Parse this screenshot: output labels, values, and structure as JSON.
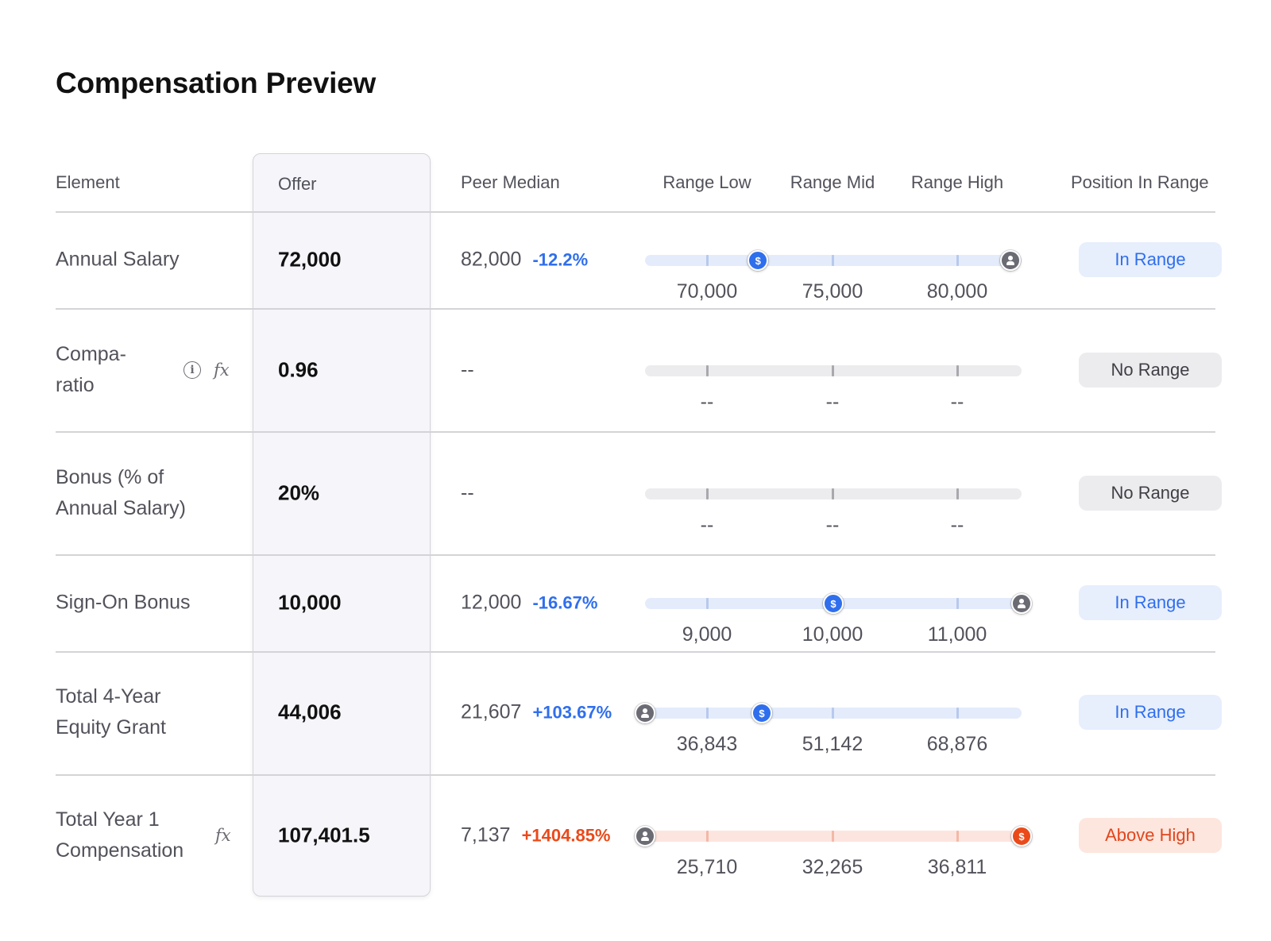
{
  "page": {
    "title": "Compensation Preview"
  },
  "columns": {
    "element": "Element",
    "offer": "Offer",
    "peer_median": "Peer Median",
    "range_low": "Range Low",
    "range_mid": "Range Mid",
    "range_high": "Range High",
    "position": "Position In Range"
  },
  "rows": [
    {
      "element_lines": [
        "Annual Salary"
      ],
      "icons": [],
      "offer": "72,000",
      "peer_value": "82,000",
      "peer_delta": "-12.2%",
      "delta_color": "blue",
      "range_low": "70,000",
      "range_mid": "75,000",
      "range_high": "80,000",
      "track_color": "blue",
      "markers": [
        {
          "type": "dollar",
          "color": "blue",
          "position": 0.3
        },
        {
          "type": "person",
          "color": "gray",
          "position": 0.97
        }
      ],
      "status": "In Range",
      "status_type": "in"
    },
    {
      "element_lines": [
        "Compa-",
        "ratio"
      ],
      "icons": [
        "info-icon",
        "formula-icon"
      ],
      "offer": "0.96",
      "peer_value": "--",
      "peer_delta": "",
      "delta_color": "blue",
      "range_low": "--",
      "range_mid": "--",
      "range_high": "--",
      "track_color": "gray",
      "markers": [],
      "status": "No Range",
      "status_type": "no"
    },
    {
      "element_lines": [
        "Bonus (% of",
        "Annual Salary)"
      ],
      "icons": [],
      "offer": "20%",
      "peer_value": "--",
      "peer_delta": "",
      "delta_color": "blue",
      "range_low": "--",
      "range_mid": "--",
      "range_high": "--",
      "track_color": "gray",
      "markers": [],
      "status": "No Range",
      "status_type": "no"
    },
    {
      "element_lines": [
        "Sign-On Bonus"
      ],
      "icons": [],
      "offer": "10,000",
      "peer_value": "12,000",
      "peer_delta": "-16.67%",
      "delta_color": "blue",
      "range_low": "9,000",
      "range_mid": "10,000",
      "range_high": "11,000",
      "track_color": "blue",
      "markers": [
        {
          "type": "dollar",
          "color": "blue",
          "position": 0.5
        },
        {
          "type": "person",
          "color": "gray",
          "position": 1.0
        }
      ],
      "status": "In Range",
      "status_type": "in"
    },
    {
      "element_lines": [
        "Total 4-Year",
        "Equity Grant"
      ],
      "icons": [],
      "offer": "44,006",
      "peer_value": "21,607",
      "peer_delta": "+103.67%",
      "delta_color": "blue",
      "range_low": "36,843",
      "range_mid": "51,142",
      "range_high": "68,876",
      "track_color": "blue",
      "markers": [
        {
          "type": "person",
          "color": "gray",
          "position": 0.0
        },
        {
          "type": "dollar",
          "color": "blue",
          "position": 0.31
        }
      ],
      "status": "In Range",
      "status_type": "in"
    },
    {
      "element_lines": [
        "Total Year 1",
        "Compensation"
      ],
      "icons": [
        "formula-icon"
      ],
      "offer": "107,401.5",
      "peer_value": "7,137",
      "peer_delta": "+1404.85%",
      "delta_color": "red",
      "range_low": "25,710",
      "range_mid": "32,265",
      "range_high": "36,811",
      "track_color": "red",
      "markers": [
        {
          "type": "person",
          "color": "gray",
          "position": 0.0
        },
        {
          "type": "dollar",
          "color": "red",
          "position": 1.0
        }
      ],
      "status": "Above High",
      "status_type": "above"
    }
  ],
  "icons": {
    "dollar_glyph": "$",
    "info_glyph": "i",
    "formula_glyph": "fx"
  },
  "colors": {
    "accent_blue": "#2f6fed",
    "alert_red": "#ea4a1a",
    "badge_in_bg": "#e7eefc",
    "badge_above_bg": "#fde6de"
  }
}
